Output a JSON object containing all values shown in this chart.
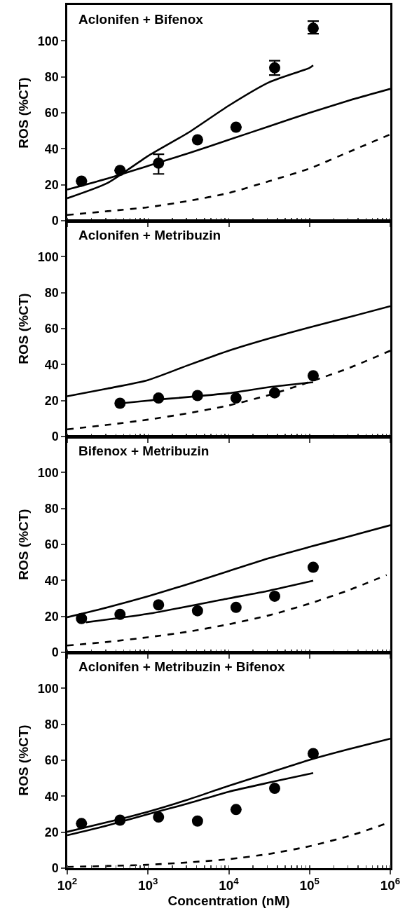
{
  "chart_data": [
    {
      "type": "scatter",
      "title": "Aclonifen + Bifenox",
      "ylabel": "ROS (%CT)",
      "log": "x",
      "tick_labels": "y",
      "xlim": [
        100,
        1000000
      ],
      "xticks": [
        {
          "value": 100,
          "label": null
        },
        {
          "value": 1000,
          "label": null
        },
        {
          "value": 10000,
          "label": null
        },
        {
          "value": 100000,
          "label": null
        },
        {
          "value": 1000000,
          "label": null
        }
      ],
      "ylim": [
        0,
        120
      ],
      "yticks": [
        0,
        20,
        40,
        60,
        80,
        100
      ],
      "series": [
        {
          "marker": "circle",
          "color": "#000000",
          "x": [
            150,
            450,
            1350,
            4100,
            12300,
            37000,
            111000
          ],
          "values": [
            22,
            28,
            32,
            45,
            52,
            85,
            107
          ],
          "errors": [
            null,
            null,
            [
              26,
              37
            ],
            null,
            null,
            [
              81,
              89
            ],
            [
              104,
              111
            ]
          ]
        },
        {
          "type": "line",
          "color": "#000000",
          "line_style": "solid",
          "x": [
            100,
            316,
            1000,
            3162,
            10000,
            31623,
            100000,
            111000
          ],
          "values": [
            12.5,
            21,
            36,
            49,
            64,
            77,
            85,
            86.4
          ]
        },
        {
          "type": "line",
          "color": "#000000",
          "line_style": "solid",
          "x": [
            100,
            316,
            1000,
            3162,
            10000,
            31623,
            100000,
            316228,
            1000000
          ],
          "values": [
            17.3,
            23.5,
            30.5,
            37.5,
            45,
            52.5,
            60,
            67,
            73.3
          ]
        },
        {
          "type": "line",
          "color": "#000000",
          "line_style": "dashed",
          "x": [
            100,
            316,
            1000,
            3162,
            10000,
            31623,
            100000,
            316228,
            1000000
          ],
          "values": [
            3.2,
            5.3,
            7.5,
            11,
            15.4,
            22,
            29,
            38.5,
            48
          ]
        }
      ]
    },
    {
      "type": "scatter",
      "title": "Aclonifen + Metribuzin",
      "ylabel": "ROS (%CT)",
      "log": "x",
      "tick_labels": "y",
      "xlim": [
        100,
        1000000
      ],
      "xticks": [
        {
          "value": 100,
          "label": null
        },
        {
          "value": 1000,
          "label": null
        },
        {
          "value": 10000,
          "label": null
        },
        {
          "value": 100000,
          "label": null
        },
        {
          "value": 1000000,
          "label": null
        }
      ],
      "ylim": [
        0,
        120
      ],
      "yticks": [
        0,
        20,
        40,
        60,
        80,
        100
      ],
      "series": [
        {
          "marker": "circle",
          "color": "#000000",
          "x": [
            450,
            1350,
            4100,
            12300,
            37000,
            111000
          ],
          "values": [
            18.5,
            21.4,
            22.8,
            21.4,
            24.3,
            33.8
          ]
        },
        {
          "type": "line",
          "color": "#000000",
          "line_style": "solid",
          "x": [
            450,
            1000,
            10000,
            31623,
            111000
          ],
          "values": [
            18.4,
            20,
            24.1,
            27.5,
            30.2
          ]
        },
        {
          "type": "line",
          "color": "#000000",
          "line_style": "solid",
          "x": [
            100,
            316,
            1000,
            3162,
            10000,
            31623,
            100000,
            316228,
            1000000
          ],
          "values": [
            22.4,
            26.7,
            31.4,
            39.7,
            47.7,
            54.5,
            60.7,
            66.5,
            72.5
          ]
        },
        {
          "type": "line",
          "color": "#000000",
          "line_style": "dashed",
          "x": [
            100,
            316,
            1000,
            3162,
            10000,
            31623,
            100000,
            316228,
            1000000
          ],
          "values": [
            4,
            6.5,
            9.4,
            13,
            17.3,
            23.1,
            30.3,
            38.3,
            47.7
          ]
        }
      ]
    },
    {
      "type": "scatter",
      "title": "Bifenox + Metribuzin",
      "ylabel": "ROS (%CT)",
      "log": "x",
      "tick_labels": "y",
      "xlim": [
        100,
        1000000
      ],
      "xticks": [
        {
          "value": 100,
          "label": null
        },
        {
          "value": 1000,
          "label": null
        },
        {
          "value": 10000,
          "label": null
        },
        {
          "value": 100000,
          "label": null
        },
        {
          "value": 1000000,
          "label": null
        }
      ],
      "ylim": [
        0,
        120
      ],
      "yticks": [
        0,
        20,
        40,
        60,
        80,
        100
      ],
      "series": [
        {
          "marker": "circle",
          "color": "#000000",
          "x": [
            150,
            450,
            1350,
            4100,
            12300,
            37000,
            111000
          ],
          "values": [
            18.8,
            21.1,
            26.4,
            23.1,
            25,
            31.2,
            47.3
          ]
        },
        {
          "type": "line",
          "color": "#000000",
          "line_style": "solid",
          "x": [
            170,
            1000,
            10000,
            31623,
            111000
          ],
          "values": [
            16.7,
            21.4,
            30,
            34.3,
            39.8
          ]
        },
        {
          "type": "line",
          "color": "#000000",
          "line_style": "solid",
          "x": [
            100,
            316,
            1000,
            3162,
            10000,
            31623,
            100000,
            316228,
            1000000
          ],
          "values": [
            19.5,
            25,
            31.2,
            38,
            45.2,
            52.4,
            58.6,
            64.6,
            70.7
          ]
        },
        {
          "type": "line",
          "color": "#000000",
          "line_style": "dashed",
          "x": [
            100,
            316,
            1000,
            3162,
            10000,
            31623,
            100000,
            316228,
            900000
          ],
          "values": [
            3.8,
            5.8,
            8.4,
            11.5,
            15.6,
            20.6,
            27.1,
            34.8,
            43
          ]
        }
      ]
    },
    {
      "type": "scatter",
      "title": "Aclonifen + Metribuzin + Bifenox",
      "ylabel": "ROS (%CT)",
      "xlabel": "Concentration (nM)",
      "log": "x",
      "xlim": [
        100,
        1000000
      ],
      "xticks": [
        {
          "value": 100,
          "label": "10$^{2}$"
        },
        {
          "value": 1000,
          "label": "10$^{3}$"
        },
        {
          "value": 10000,
          "label": "10$^{4}$"
        },
        {
          "value": 100000,
          "label": "10$^{5}$"
        },
        {
          "value": 1000000,
          "label": "10$^{6}$"
        }
      ],
      "ylim": [
        0,
        120
      ],
      "yticks": [
        0,
        20,
        40,
        60,
        80,
        100
      ],
      "series": [
        {
          "marker": "circle",
          "color": "#000000",
          "x": [
            150,
            450,
            1350,
            4100,
            12300,
            37000,
            111000
          ],
          "values": [
            24.8,
            26.7,
            28.4,
            26.2,
            32.6,
            44.4,
            63.7
          ]
        },
        {
          "type": "line",
          "color": "#000000",
          "line_style": "solid",
          "x": [
            100,
            316,
            1000,
            3162,
            10000,
            31623,
            111000
          ],
          "values": [
            18.3,
            23.8,
            30,
            36,
            42.5,
            47.6,
            52.9
          ]
        },
        {
          "type": "line",
          "color": "#000000",
          "line_style": "solid",
          "x": [
            100,
            316,
            1000,
            3162,
            10000,
            31623,
            100000,
            316228,
            1000000
          ],
          "values": [
            20.2,
            25.6,
            31.4,
            38.2,
            45.8,
            53,
            60.2,
            66.3,
            72
          ]
        },
        {
          "type": "line",
          "color": "#000000",
          "line_style": "dashed",
          "x": [
            100,
            316,
            1000,
            3162,
            10000,
            31623,
            100000,
            316228,
            1000000
          ],
          "values": [
            0.7,
            1.2,
            1.9,
            3.2,
            5,
            7.9,
            12.2,
            18,
            25.6
          ]
        }
      ]
    }
  ]
}
